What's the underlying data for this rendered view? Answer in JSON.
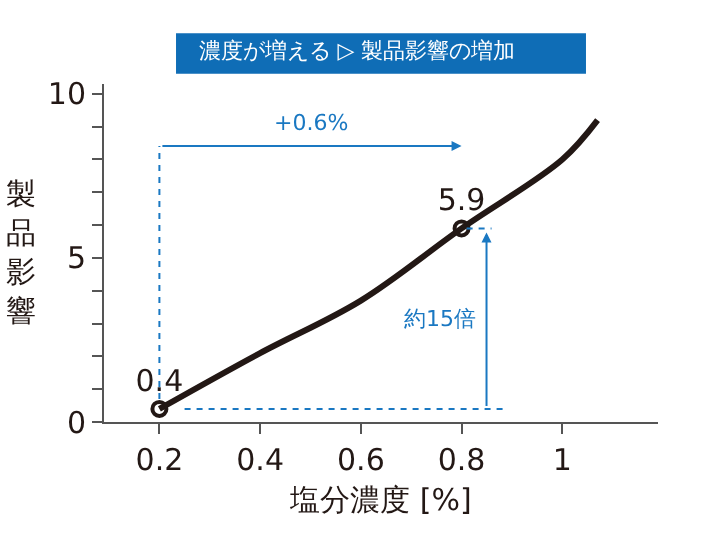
{
  "chart_data": {
    "type": "line",
    "title": "濃度が増える ▷ 製品影響の増加",
    "xlabel": "塩分濃度 [%]",
    "ylabel": "製品影響",
    "x": [
      0.2,
      0.4,
      0.6,
      0.8,
      1.0,
      1.07
    ],
    "series": [
      {
        "color": "#231815",
        "values": [
          0.4,
          2.1,
          3.7,
          5.9,
          8.0,
          9.2
        ],
        "value_labels": [
          "0.4",
          null,
          null,
          "5.9",
          null,
          null
        ]
      }
    ],
    "annotations": [
      "+0.6%",
      "約15倍"
    ],
    "xlim": [
      0.09,
      1.19
    ],
    "xticks": [
      0.2,
      0.4,
      0.6,
      0.8,
      1
    ],
    "ylim": [
      0,
      10.3
    ],
    "yticks": [
      0,
      {
        "value": 1,
        "label": null
      },
      {
        "value": 2,
        "label": null
      },
      {
        "value": 3,
        "label": null
      },
      {
        "value": 4,
        "label": null
      },
      5,
      {
        "value": 6,
        "label": null
      },
      {
        "value": 7,
        "label": null
      },
      {
        "value": 8,
        "label": null
      },
      {
        "value": 9,
        "label": null
      },
      10
    ],
    "line_style": "solid"
  }
}
